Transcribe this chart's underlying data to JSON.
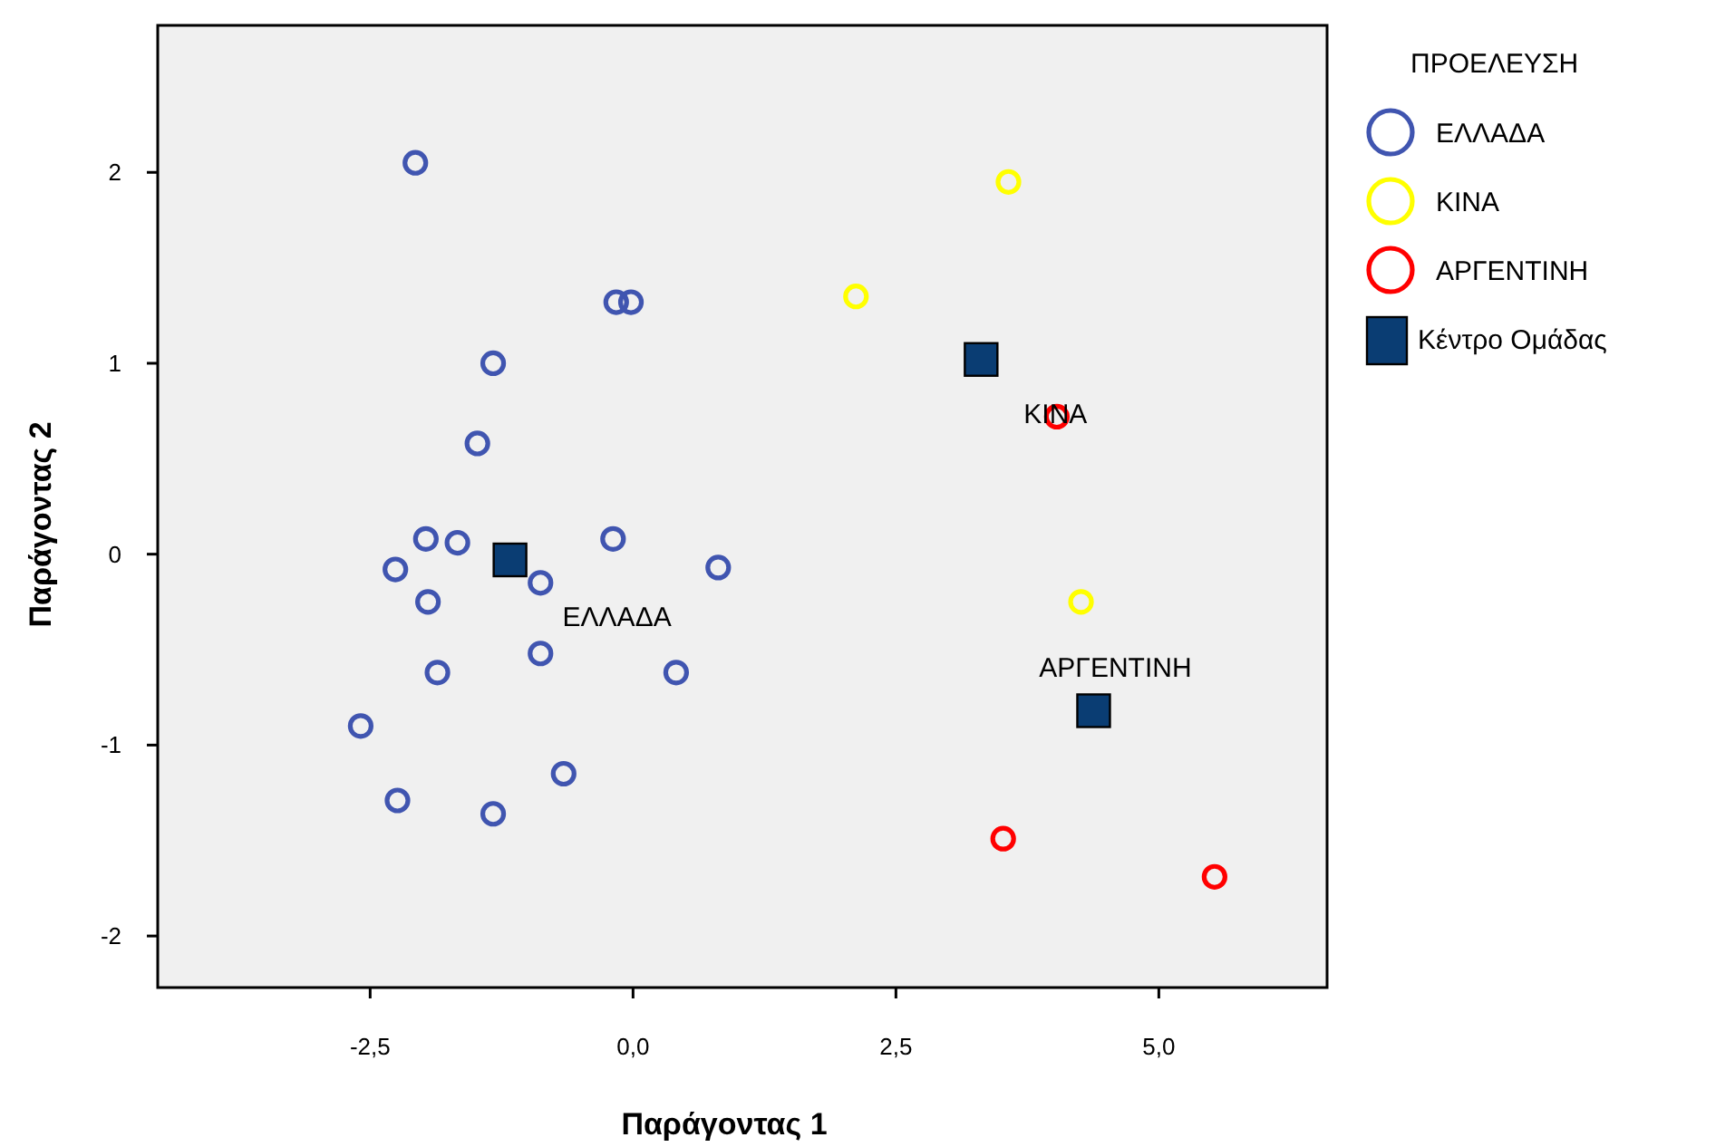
{
  "chart_data": {
    "type": "scatter",
    "xlabel": "Παράγοντας 1",
    "ylabel": "Παράγοντας 2",
    "legend_title": "ΠΡΟΕΛΕΥΣΗ",
    "legend": "right",
    "grid": false,
    "xlim": [
      -4.52,
      6.6
    ],
    "ylim": [
      -2.27,
      2.77
    ],
    "xticks": [
      {
        "value": -2.5,
        "label": "-2,5"
      },
      {
        "value": 0,
        "label": "0,0"
      },
      {
        "value": 2.5,
        "label": "2,5"
      },
      {
        "value": 5,
        "label": "5,0"
      }
    ],
    "yticks": [
      -2,
      -1,
      0,
      1,
      2
    ],
    "series": [
      {
        "name": "ΕΛΛΑΔΑ",
        "color": "#4055b0",
        "marker": "circle",
        "x": [
          -2.07,
          -0.16,
          -0.02,
          -1.33,
          -1.48,
          -1.97,
          -1.67,
          -0.19,
          -2.26,
          -0.88,
          0.81,
          -1.95,
          -0.88,
          -1.86,
          0.41,
          -2.59,
          -0.66,
          -2.24,
          -1.33
        ],
        "values": [
          2.05,
          1.32,
          1.32,
          1.0,
          0.58,
          0.08,
          0.06,
          0.08,
          -0.08,
          -0.15,
          -0.07,
          -0.25,
          -0.52,
          -0.62,
          -0.62,
          -0.9,
          -1.15,
          -1.29,
          -1.36
        ]
      },
      {
        "name": "ΚΙΝΑ",
        "color": "#ffff00",
        "marker": "circle",
        "x": [
          3.57,
          2.12,
          4.26
        ],
        "values": [
          1.95,
          1.35,
          -0.25
        ]
      },
      {
        "name": "ΑΡΓΕΝΤΙΝΗ",
        "color": "#ff0000",
        "marker": "circle",
        "x": [
          4.03,
          3.52,
          5.53
        ],
        "values": [
          0.72,
          -1.49,
          -1.69
        ]
      },
      {
        "name": "Κέντρο Ομάδας",
        "color": "#0a3d73",
        "marker": "square",
        "x": [
          -1.17,
          3.31,
          4.38
        ],
        "values": [
          -0.03,
          1.02,
          -0.82
        ]
      }
    ],
    "annotations": [
      {
        "text": "ΕΛΛΑΔΑ",
        "x": -1.17,
        "y": -0.03
      },
      {
        "text": "ΚΙΝΑ",
        "x": 3.31,
        "y": 1.02
      },
      {
        "text": "ΑΡΓΕΝΤΙΝΗ",
        "x": 4.38,
        "y": -0.82
      }
    ]
  }
}
